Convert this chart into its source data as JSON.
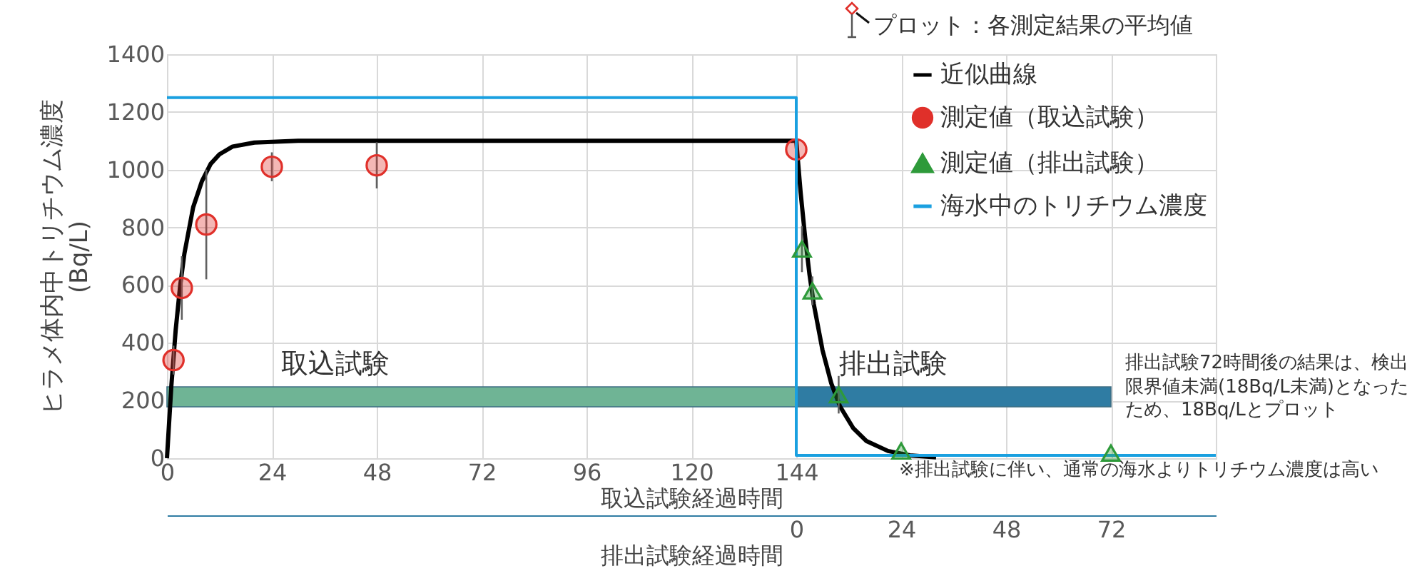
{
  "chart_data": {
    "type": "scatter",
    "ylabel": "ヒラメ体内中トリチウム濃度\n(Bq/L)",
    "xlabel": "取込試験経過時間",
    "x2label": "排出試験経過時間",
    "xlim": [
      0,
      240
    ],
    "xticks": [
      0,
      24,
      48,
      72,
      96,
      120,
      144
    ],
    "x2lim": [
      -144,
      96
    ],
    "x2ticks": [
      0,
      24,
      48,
      72
    ],
    "ylim": [
      0,
      1400
    ],
    "yticks": [
      0,
      200,
      400,
      600,
      800,
      1000,
      1200,
      1400
    ],
    "grid": true,
    "legend": "top right",
    "series": [
      {
        "name": "近似曲線",
        "type": "line",
        "color": "#000000",
        "x": [
          0,
          1,
          2,
          3,
          4,
          6,
          8,
          10,
          12,
          15,
          20,
          30,
          144,
          145,
          146,
          147,
          148,
          150,
          152,
          154,
          157,
          160,
          165,
          170,
          176
        ],
        "values": [
          0,
          250,
          445,
          595,
          710,
          870,
          960,
          1020,
          1053,
          1080,
          1094,
          1100,
          1100,
          920,
          770,
          640,
          535,
          375,
          260,
          180,
          105,
          60,
          25,
          10,
          3
        ]
      },
      {
        "name": "測定値（取込試験）",
        "marker": "circle",
        "color": "#e0302a",
        "x": [
          1.5,
          3.4,
          9,
          24,
          48,
          144
        ],
        "values": [
          340,
          590,
          810,
          1010,
          1015,
          1070
        ],
        "errors": [
          50,
          110,
          190,
          50,
          80,
          55
        ]
      },
      {
        "name": "測定値（排出試験）",
        "marker": "triangle",
        "color": "#2e9a3a",
        "axis": "x2",
        "x": [
          1.3,
          3.7,
          9.7,
          24,
          72
        ],
        "values": [
          725,
          580,
          220,
          25,
          18
        ],
        "errors": [
          80,
          50,
          65,
          null,
          null
        ]
      },
      {
        "name": "海水中のトリチウム濃度",
        "type": "line",
        "color": "#1aa0e0",
        "x": [
          0,
          144,
          144,
          240
        ],
        "values": [
          1250,
          1250,
          10,
          10
        ]
      }
    ],
    "bands": [
      {
        "axis": "x",
        "from": 0,
        "to": 144,
        "label": "取込試験",
        "color": "#6fb495"
      },
      {
        "axis": "x",
        "from": 144,
        "to": 216,
        "label": "排出試験",
        "color": "#2f7ca3"
      }
    ],
    "annotations": [
      "プロット：各測定結果の平均値",
      {
        "text": "排出試験72時間後の結果は、検出限界値未満(18Bq/L未満)となったため、18Bq/Lとプロット",
        "x": 216,
        "y": 18
      },
      "※排出試験に伴い、通常の海水よりトリチウム濃度は高い"
    ]
  }
}
